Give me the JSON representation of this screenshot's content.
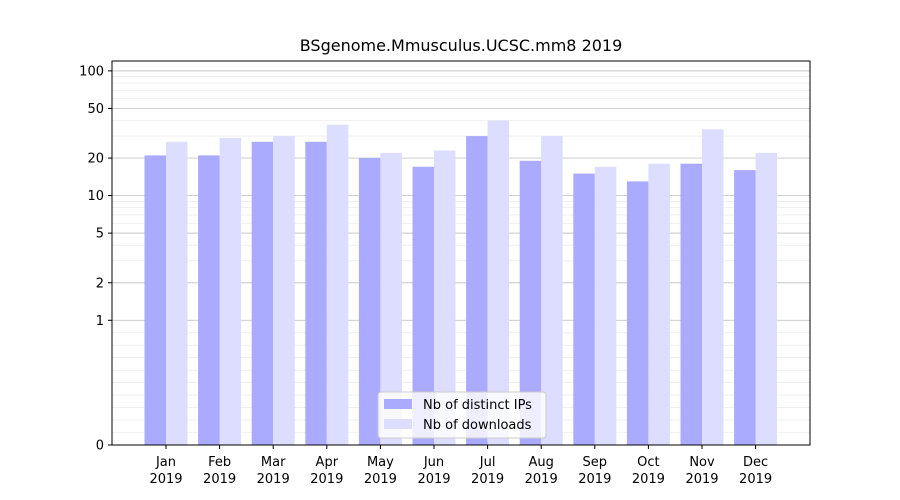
{
  "chart_data": {
    "type": "bar",
    "title": "BSgenome.Mmusculus.UCSC.mm8 2019",
    "xlabel": "",
    "ylabel": "",
    "yscale": "symlog",
    "ylim": [
      0,
      120
    ],
    "yticks": [
      0,
      1,
      2,
      5,
      10,
      20,
      50,
      100
    ],
    "grid": true,
    "legend_position": "bottom-center",
    "categories": [
      [
        "Jan",
        "2019"
      ],
      [
        "Feb",
        "2019"
      ],
      [
        "Mar",
        "2019"
      ],
      [
        "Apr",
        "2019"
      ],
      [
        "May",
        "2019"
      ],
      [
        "Jun",
        "2019"
      ],
      [
        "Jul",
        "2019"
      ],
      [
        "Aug",
        "2019"
      ],
      [
        "Sep",
        "2019"
      ],
      [
        "Oct",
        "2019"
      ],
      [
        "Nov",
        "2019"
      ],
      [
        "Dec",
        "2019"
      ]
    ],
    "series": [
      {
        "name": "Nb of distinct IPs",
        "color": "#aaaaff",
        "values": [
          21,
          21,
          27,
          27,
          20,
          17,
          30,
          19,
          15,
          13,
          18,
          16
        ]
      },
      {
        "name": "Nb of downloads",
        "color": "#ddddff",
        "values": [
          27,
          29,
          30,
          37,
          22,
          23,
          40,
          30,
          17,
          18,
          34,
          22
        ]
      }
    ]
  }
}
